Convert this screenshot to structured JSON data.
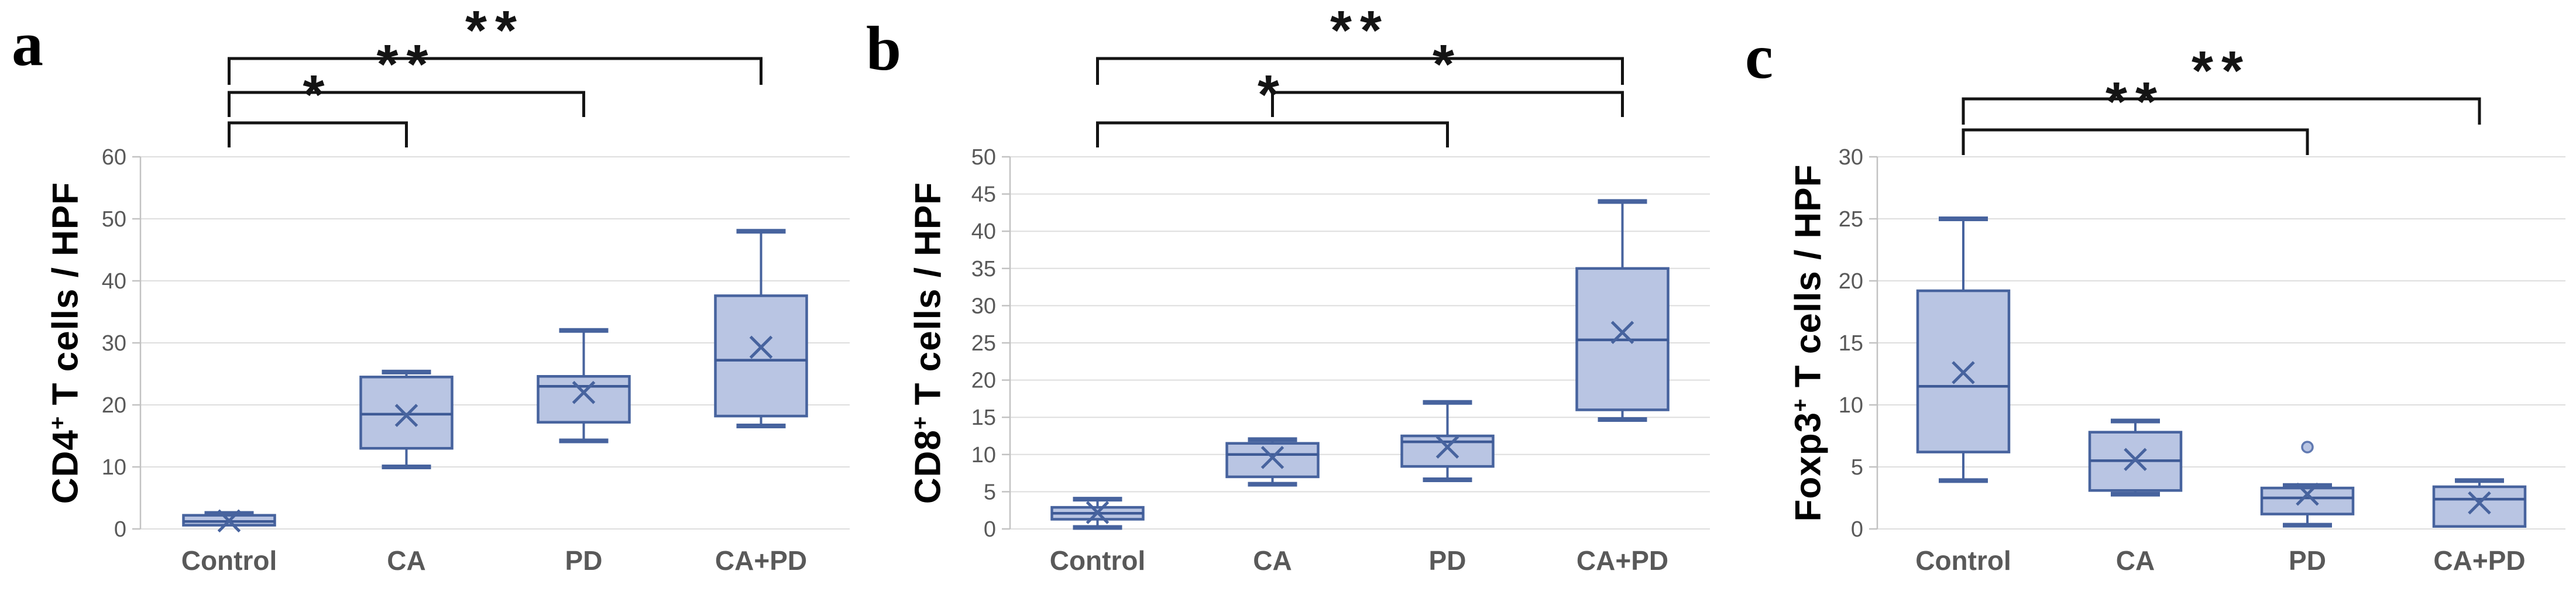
{
  "figure": {
    "background": "#ffffff"
  },
  "colors": {
    "box_fill": "#b9c5e3",
    "box_stroke": "#47639e",
    "median_line": "#3e5a96",
    "mean_marker": "#47639e",
    "whisker": "#47639e",
    "outlier": "#6079b1",
    "gridline": "#dedede",
    "axis_line": "#c2c2c2",
    "tick_label": "#595959",
    "category_label": "#595959",
    "bracket": "#141414",
    "panel_letter": "#000000",
    "ylabel": "#000000"
  },
  "chart_data": [
    {
      "type": "box",
      "panel_label": "a",
      "ylabel": {
        "pre": "CD4",
        "sup": "+",
        "post": " T cells / HPF"
      },
      "ylim": [
        0,
        60
      ],
      "ytick_step": 10,
      "grid": "horizontal",
      "legend": "none",
      "categories": [
        "Control",
        "CA",
        "PD",
        "CA+PD"
      ],
      "boxes": [
        {
          "category": "Control",
          "whisker_low": 0.4,
          "q1": 0.6,
          "median": 1.2,
          "q3": 2.2,
          "whisker_high": 2.5,
          "mean": 1.3,
          "outliers": []
        },
        {
          "category": "CA",
          "whisker_low": 10,
          "q1": 13,
          "median": 18.5,
          "q3": 24.5,
          "whisker_high": 25.3,
          "mean": 18.3,
          "outliers": []
        },
        {
          "category": "PD",
          "whisker_low": 14.2,
          "q1": 17.2,
          "median": 23,
          "q3": 24.6,
          "whisker_high": 32,
          "mean": 22,
          "outliers": []
        },
        {
          "category": "CA+PD",
          "whisker_low": 16.6,
          "q1": 18.2,
          "median": 27.2,
          "q3": 37.6,
          "whisker_high": 48,
          "mean": 29.3,
          "outliers": []
        }
      ],
      "significance": [
        {
          "group1": "Control",
          "group2": "CA",
          "label": "*"
        },
        {
          "group1": "Control",
          "group2": "PD",
          "label": "**"
        },
        {
          "group1": "Control",
          "group2": "CA+PD",
          "label": "**"
        }
      ]
    },
    {
      "type": "box",
      "panel_label": "b",
      "ylabel": {
        "pre": "CD8",
        "sup": "+",
        "post": " T cells / HPF"
      },
      "ylim": [
        0,
        50
      ],
      "ytick_step": 5,
      "grid": "horizontal",
      "legend": "none",
      "categories": [
        "Control",
        "CA",
        "PD",
        "CA+PD"
      ],
      "boxes": [
        {
          "category": "Control",
          "whisker_low": 0.2,
          "q1": 1.3,
          "median": 2.1,
          "q3": 2.9,
          "whisker_high": 4,
          "mean": 2.2,
          "outliers": []
        },
        {
          "category": "CA",
          "whisker_low": 6,
          "q1": 7,
          "median": 10,
          "q3": 11.5,
          "whisker_high": 12,
          "mean": 9.6,
          "outliers": []
        },
        {
          "category": "PD",
          "whisker_low": 6.6,
          "q1": 8.4,
          "median": 11.7,
          "q3": 12.5,
          "whisker_high": 17,
          "mean": 11,
          "outliers": []
        },
        {
          "category": "CA+PD",
          "whisker_low": 14.7,
          "q1": 16,
          "median": 25.4,
          "q3": 35,
          "whisker_high": 44,
          "mean": 26.4,
          "outliers": []
        }
      ],
      "significance": [
        {
          "group1": "Control",
          "group2": "PD",
          "label": "*"
        },
        {
          "group1": "CA",
          "group2": "CA+PD",
          "label": "*"
        },
        {
          "group1": "Control",
          "group2": "CA+PD",
          "label": "**"
        }
      ]
    },
    {
      "type": "box",
      "panel_label": "c",
      "ylabel": {
        "pre": "Foxp3",
        "sup": "+",
        "post": " T cells / HPF"
      },
      "ylim": [
        0,
        30
      ],
      "ytick_step": 5,
      "grid": "horizontal",
      "legend": "none",
      "categories": [
        "Control",
        "CA",
        "PD",
        "CA+PD"
      ],
      "boxes": [
        {
          "category": "Control",
          "whisker_low": 3.9,
          "q1": 6.2,
          "median": 11.5,
          "q3": 19.2,
          "whisker_high": 25,
          "mean": 12.6,
          "outliers": []
        },
        {
          "category": "CA",
          "whisker_low": 2.8,
          "q1": 3.1,
          "median": 5.5,
          "q3": 7.8,
          "whisker_high": 8.7,
          "mean": 5.6,
          "outliers": []
        },
        {
          "category": "PD",
          "whisker_low": 0.3,
          "q1": 1.2,
          "median": 2.5,
          "q3": 3.3,
          "whisker_high": 3.5,
          "mean": 2.8,
          "outliers": [
            6.6
          ]
        },
        {
          "category": "CA+PD",
          "whisker_low": 0.1,
          "q1": 0.2,
          "median": 2.4,
          "q3": 3.4,
          "whisker_high": 3.9,
          "mean": 2.1,
          "outliers": []
        }
      ],
      "significance": [
        {
          "group1": "Control",
          "group2": "PD",
          "label": "**"
        },
        {
          "group1": "Control",
          "group2": "CA+PD",
          "label": "**"
        }
      ]
    }
  ]
}
